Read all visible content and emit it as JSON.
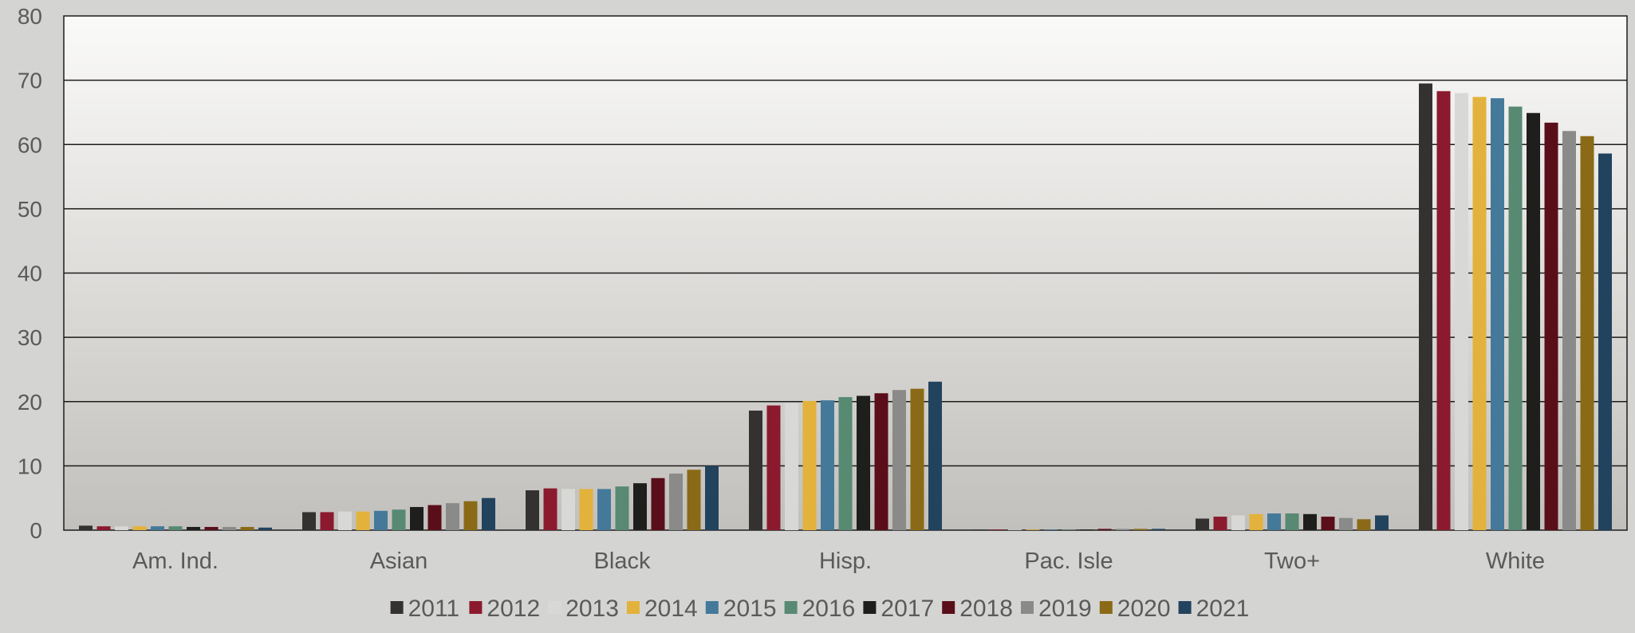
{
  "chart_data": {
    "type": "bar",
    "title": "",
    "xlabel": "",
    "ylabel": "",
    "ylim": [
      0,
      80
    ],
    "yticks": [
      0,
      10,
      20,
      30,
      40,
      50,
      60,
      70,
      80
    ],
    "grid": true,
    "legend_position": "bottom",
    "categories": [
      "Am. Ind.",
      "Asian",
      "Black",
      "Hisp.",
      "Pac. Isle",
      "Two+",
      "White"
    ],
    "series": [
      {
        "name": "2011",
        "color": "#333230",
        "values": [
          0.7,
          2.8,
          6.2,
          18.6,
          0.1,
          1.8,
          69.5
        ]
      },
      {
        "name": "2012",
        "color": "#8b1a2e",
        "values": [
          0.6,
          2.8,
          6.5,
          19.4,
          0.1,
          2.1,
          68.3
        ]
      },
      {
        "name": "2013",
        "color": "#d8d8d6",
        "values": [
          0.6,
          2.9,
          6.4,
          19.8,
          0.1,
          2.3,
          68.0
        ]
      },
      {
        "name": "2014",
        "color": "#e3b23c",
        "values": [
          0.6,
          2.9,
          6.4,
          20.1,
          0.1,
          2.5,
          67.4
        ]
      },
      {
        "name": "2015",
        "color": "#44799a",
        "values": [
          0.6,
          3.0,
          6.4,
          20.2,
          0.1,
          2.6,
          67.2
        ]
      },
      {
        "name": "2016",
        "color": "#578973",
        "values": [
          0.6,
          3.2,
          6.8,
          20.7,
          0.1,
          2.6,
          65.9
        ]
      },
      {
        "name": "2017",
        "color": "#1e1e1c",
        "values": [
          0.5,
          3.6,
          7.3,
          20.9,
          0.1,
          2.5,
          64.9
        ]
      },
      {
        "name": "2018",
        "color": "#5a0e1a",
        "values": [
          0.5,
          3.9,
          8.1,
          21.3,
          0.2,
          2.1,
          63.4
        ]
      },
      {
        "name": "2019",
        "color": "#8a8a88",
        "values": [
          0.5,
          4.2,
          8.8,
          21.8,
          0.2,
          1.9,
          62.1
        ]
      },
      {
        "name": "2020",
        "color": "#8a6a16",
        "values": [
          0.5,
          4.5,
          9.4,
          22.0,
          0.2,
          1.7,
          61.3
        ]
      },
      {
        "name": "2021",
        "color": "#22435e",
        "values": [
          0.4,
          5.0,
          10.0,
          23.1,
          0.2,
          2.3,
          58.6
        ]
      }
    ]
  }
}
